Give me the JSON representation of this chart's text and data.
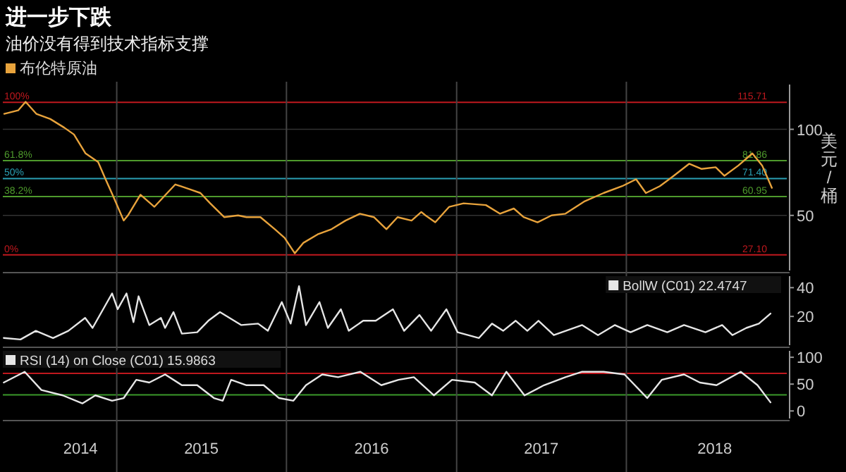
{
  "chart_data": [
    {
      "type": "line",
      "title": "进一步下跌",
      "subtitle": "油价没有得到技术指标支撑",
      "ylabel": "美元/桶",
      "legend": "top left",
      "grid": "y",
      "tick_labels": "y",
      "xlim": [
        "2014-05-01",
        "2018-12-12"
      ],
      "ylim": [
        18,
        126
      ],
      "yticks": [
        50,
        100
      ],
      "series": [
        {
          "name": "布伦特原油",
          "color": "#e8a33c",
          "x": [
            "2014-05-04",
            "2014-06-03",
            "2014-06-19",
            "2014-07-12",
            "2014-08-11",
            "2014-09-10",
            "2014-10-01",
            "2014-10-26",
            "2014-11-22",
            "2014-12-08",
            "2014-12-23",
            "2015-01-16",
            "2015-01-25",
            "2015-02-21",
            "2015-03-23",
            "2015-04-16",
            "2015-05-07",
            "2015-06-09",
            "2015-06-30",
            "2015-07-21",
            "2015-08-20",
            "2015-09-19",
            "2015-10-07",
            "2015-11-06",
            "2015-12-07",
            "2015-12-28",
            "2016-01-19",
            "2016-02-06",
            "2016-03-08",
            "2016-04-07",
            "2016-05-07",
            "2016-06-07",
            "2016-07-07",
            "2016-08-03",
            "2016-08-27",
            "2016-09-26",
            "2016-10-17",
            "2016-10-26",
            "2016-11-16",
            "2016-12-16",
            "2017-01-16",
            "2017-03-05",
            "2017-04-04",
            "2017-05-04",
            "2017-05-25",
            "2017-06-24",
            "2017-07-24",
            "2017-08-23",
            "2017-10-02",
            "2017-11-13",
            "2017-12-23",
            "2018-01-22",
            "2018-02-12",
            "2018-03-14",
            "2018-04-13",
            "2018-05-16",
            "2018-06-12",
            "2018-07-12",
            "2018-07-31",
            "2018-08-30",
            "2018-09-29",
            "2018-10-20",
            "2018-11-10"
          ],
          "values": [
            109,
            111,
            116,
            109,
            106,
            101,
            97,
            86,
            81,
            71,
            62,
            47,
            50,
            62,
            55,
            62,
            68,
            65,
            63,
            57,
            49,
            50,
            49,
            49,
            42,
            37,
            28,
            34,
            39,
            42,
            47,
            51,
            49,
            42,
            49,
            47,
            52,
            50,
            46,
            55,
            57,
            56,
            51,
            54,
            49,
            46,
            50,
            51,
            58,
            63,
            67,
            71,
            63,
            67,
            73,
            80,
            77,
            78,
            73,
            79,
            86,
            79,
            66
          ]
        }
      ],
      "ref_lines": [
        {
          "axis": "y",
          "value": 115.71,
          "label": "115.71",
          "color": "#c0181e"
        },
        {
          "axis": "y",
          "value": 81.86,
          "label": "81.86",
          "color": "#4e9a2c"
        },
        {
          "axis": "y",
          "value": 71.4,
          "label": "71.40",
          "color": "#2aa0b4"
        },
        {
          "axis": "y",
          "value": 60.95,
          "label": "60.95",
          "color": "#4e9a2c"
        },
        {
          "axis": "y",
          "value": 27.1,
          "label": "27.10",
          "color": "#c0181e"
        },
        {
          "axis": "x",
          "value": "2015-01-01",
          "color": "#444444"
        },
        {
          "axis": "x",
          "value": "2016-01-01",
          "color": "#444444"
        },
        {
          "axis": "x",
          "value": "2017-01-01",
          "color": "#444444"
        },
        {
          "axis": "x",
          "value": "2018-01-01",
          "color": "#444444"
        }
      ],
      "annotations": [
        "100%",
        "61.8%",
        "50%",
        "38.2%",
        "0%"
      ]
    },
    {
      "type": "line",
      "legend": "top right",
      "tick_labels": "y",
      "xlim": [
        "2014-05-01",
        "2018-12-12"
      ],
      "ylim": [
        0,
        48
      ],
      "yticks": [
        20,
        40
      ],
      "series": [
        {
          "name": "BollW (C01) 22.4747",
          "color": "#e6e6e6",
          "x": [
            "2014-05-03",
            "2014-06-08",
            "2014-07-11",
            "2014-08-17",
            "2014-09-19",
            "2014-10-25",
            "2014-11-10",
            "2014-12-22",
            "2015-01-03",
            "2015-01-22",
            "2015-02-06",
            "2015-02-17",
            "2015-03-12",
            "2015-04-06",
            "2015-04-15",
            "2015-05-03",
            "2015-05-21",
            "2015-06-23",
            "2015-07-17",
            "2015-08-11",
            "2015-09-26",
            "2015-11-01",
            "2015-11-22",
            "2015-12-22",
            "2016-01-10",
            "2016-01-28",
            "2016-02-12",
            "2016-03-12",
            "2016-03-30",
            "2016-04-27",
            "2016-05-14",
            "2016-06-14",
            "2016-07-11",
            "2016-08-17",
            "2016-09-10",
            "2016-10-13",
            "2016-11-07",
            "2016-12-10",
            "2017-01-03",
            "2017-02-18",
            "2017-03-18",
            "2017-04-11",
            "2017-05-08",
            "2017-06-02",
            "2017-06-26",
            "2017-07-29",
            "2017-09-28",
            "2017-11-01",
            "2017-12-07",
            "2018-01-10",
            "2018-02-15",
            "2018-03-30",
            "2018-05-05",
            "2018-06-20",
            "2018-07-26",
            "2018-08-17",
            "2018-09-16",
            "2018-10-13",
            "2018-11-07"
          ],
          "values": [
            5,
            4,
            10,
            5,
            10,
            19,
            12,
            36,
            25,
            36,
            16,
            34,
            14,
            19,
            12,
            23,
            8,
            9,
            17,
            23,
            14,
            15,
            10,
            30,
            15,
            41,
            14,
            30,
            12,
            25,
            10,
            17,
            17,
            25,
            10,
            21,
            10,
            25,
            9,
            5,
            15,
            10,
            17,
            10,
            17,
            7,
            14,
            7,
            14,
            9,
            14,
            9,
            14,
            9,
            14,
            7,
            12,
            15,
            22
          ]
        }
      ],
      "ref_lines": [
        {
          "axis": "x",
          "value": "2015-01-01",
          "color": "#444444"
        },
        {
          "axis": "x",
          "value": "2016-01-01",
          "color": "#444444"
        },
        {
          "axis": "x",
          "value": "2017-01-01",
          "color": "#444444"
        },
        {
          "axis": "x",
          "value": "2018-01-01",
          "color": "#444444"
        }
      ]
    },
    {
      "type": "line",
      "legend": "top left",
      "xlim": [
        "2014-05-01",
        "2018-12-12"
      ],
      "ylim": [
        -14,
        112
      ],
      "yticks": [
        0,
        50,
        100
      ],
      "xticks": [
        {
          "value": "2014-10-15",
          "label": "2014"
        },
        {
          "value": "2015-07-02",
          "label": "2015"
        },
        {
          "value": "2016-07-02",
          "label": "2016"
        },
        {
          "value": "2017-07-02",
          "label": "2017"
        },
        {
          "value": "2018-07-10",
          "label": "2018"
        }
      ],
      "series": [
        {
          "name": "RSI (14)  on Close (C01) 15.9863",
          "color": "#e6e6e6",
          "x": [
            "2014-05-03",
            "2014-06-17",
            "2014-07-23",
            "2014-09-07",
            "2014-10-19",
            "2014-11-16",
            "2014-12-22",
            "2015-01-16",
            "2015-02-12",
            "2015-03-12",
            "2015-04-15",
            "2015-05-21",
            "2015-06-23",
            "2015-07-29",
            "2015-08-17",
            "2015-09-04",
            "2015-10-07",
            "2015-11-13",
            "2015-12-16",
            "2016-01-16",
            "2016-02-12",
            "2016-03-18",
            "2016-04-21",
            "2016-06-08",
            "2016-07-23",
            "2016-08-29",
            "2016-10-01",
            "2016-11-13",
            "2016-12-22",
            "2017-02-09",
            "2017-03-18",
            "2017-04-18",
            "2017-05-27",
            "2017-07-08",
            "2017-08-23",
            "2017-09-28",
            "2017-11-13",
            "2017-12-28",
            "2018-02-15",
            "2018-03-18",
            "2018-05-05",
            "2018-06-08",
            "2018-07-14",
            "2018-09-04",
            "2018-10-10",
            "2018-11-07"
          ],
          "values": [
            53,
            73,
            39,
            29,
            14,
            29,
            19,
            24,
            58,
            53,
            68,
            48,
            48,
            24,
            19,
            58,
            48,
            48,
            24,
            19,
            48,
            68,
            63,
            73,
            48,
            58,
            63,
            29,
            58,
            53,
            29,
            73,
            29,
            48,
            63,
            73,
            73,
            68,
            24,
            58,
            68,
            53,
            48,
            73,
            48,
            16
          ]
        }
      ],
      "ref_lines": [
        {
          "axis": "y",
          "value": 70,
          "color": "#c0181e"
        },
        {
          "axis": "y",
          "value": 30,
          "color": "#3a9a2a"
        },
        {
          "axis": "x",
          "value": "2015-01-01",
          "color": "#444444"
        },
        {
          "axis": "x",
          "value": "2016-01-01",
          "color": "#444444"
        },
        {
          "axis": "x",
          "value": "2017-01-01",
          "color": "#444444"
        },
        {
          "axis": "x",
          "value": "2018-01-01",
          "color": "#444444"
        }
      ]
    }
  ]
}
